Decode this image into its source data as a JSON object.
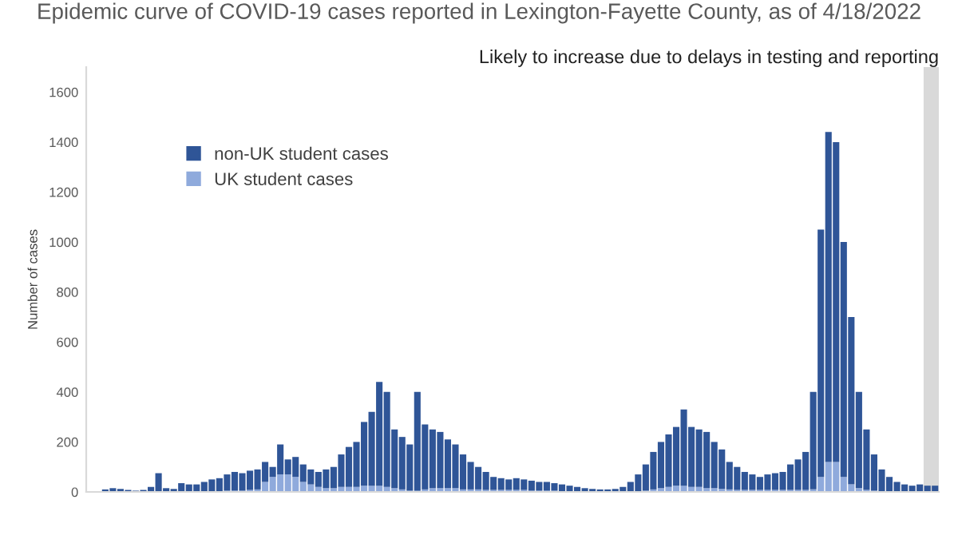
{
  "chart_data": {
    "type": "bar",
    "title": "Epidemic curve of COVID-19 cases reported in Lexington-Fayette County, as of 4/18/2022",
    "ylabel": "Number of cases",
    "stacked": true,
    "legend": "top left",
    "tick_labels": "y",
    "grid": false,
    "ylim": [
      0,
      1700
    ],
    "yticks": [
      0,
      200,
      400,
      600,
      800,
      1000,
      1200,
      1400,
      1600
    ],
    "annotations": [
      "Likely to increase due to delays in testing and reporting"
    ],
    "series": [
      {
        "name": "UK student cases",
        "color": "#8faadc",
        "values": [
          0,
          0,
          0,
          0,
          0,
          0,
          0,
          0,
          0,
          0,
          0,
          0,
          0,
          0,
          0,
          0,
          2,
          3,
          5,
          5,
          5,
          8,
          10,
          40,
          60,
          70,
          70,
          60,
          40,
          30,
          20,
          15,
          15,
          20,
          20,
          20,
          25,
          25,
          25,
          20,
          15,
          10,
          5,
          5,
          10,
          15,
          15,
          15,
          15,
          10,
          10,
          10,
          8,
          8,
          8,
          8,
          8,
          8,
          5,
          5,
          5,
          5,
          3,
          3,
          2,
          2,
          2,
          2,
          2,
          2,
          2,
          2,
          3,
          5,
          10,
          15,
          20,
          25,
          25,
          20,
          20,
          15,
          15,
          12,
          10,
          8,
          8,
          8,
          8,
          8,
          8,
          8,
          8,
          8,
          8,
          10,
          60,
          120,
          120,
          60,
          30,
          15,
          8,
          5,
          3,
          3,
          2,
          2,
          2,
          2,
          2,
          2
        ]
      },
      {
        "name": "non-UK student cases",
        "color": "#2f5597",
        "values": [
          0,
          2,
          10,
          15,
          12,
          8,
          5,
          8,
          20,
          75,
          15,
          12,
          35,
          30,
          30,
          40,
          48,
          52,
          65,
          75,
          70,
          77,
          80,
          80,
          40,
          120,
          60,
          80,
          70,
          60,
          60,
          75,
          85,
          130,
          160,
          180,
          255,
          295,
          415,
          380,
          235,
          210,
          185,
          395,
          260,
          235,
          225,
          195,
          175,
          140,
          110,
          90,
          72,
          52,
          47,
          42,
          47,
          42,
          40,
          35,
          35,
          30,
          27,
          22,
          18,
          13,
          10,
          8,
          8,
          10,
          18,
          38,
          67,
          105,
          150,
          185,
          210,
          235,
          305,
          240,
          230,
          225,
          185,
          158,
          110,
          92,
          72,
          62,
          52,
          62,
          67,
          72,
          102,
          122,
          152,
          390,
          990,
          1320,
          1280,
          940,
          670,
          385,
          242,
          145,
          87,
          57,
          38,
          28,
          23,
          28,
          23,
          23
        ]
      }
    ],
    "categories": [
      null,
      null,
      null,
      null,
      null,
      null,
      null,
      null,
      null,
      null,
      null,
      null,
      null,
      null,
      null,
      null,
      null,
      null,
      null,
      null,
      null,
      null,
      null,
      null,
      null,
      null,
      null,
      null,
      null,
      null,
      null,
      null,
      null,
      null,
      null,
      null,
      null,
      null,
      null,
      null,
      null,
      null,
      null,
      null,
      null,
      null,
      null,
      null,
      null,
      null,
      null,
      null,
      null,
      null,
      null,
      null,
      null,
      null,
      null,
      null,
      null,
      null,
      null,
      null,
      null,
      null,
      null,
      null,
      null,
      null,
      null,
      null,
      null,
      null,
      null,
      null,
      null,
      null,
      null,
      null,
      null,
      null,
      null,
      null,
      null,
      null,
      null,
      null,
      null,
      null,
      null,
      null,
      null,
      null,
      null,
      null,
      null,
      null,
      null,
      null,
      null,
      null,
      null,
      null,
      null,
      null,
      null,
      null,
      null,
      null,
      null,
      null
    ]
  }
}
